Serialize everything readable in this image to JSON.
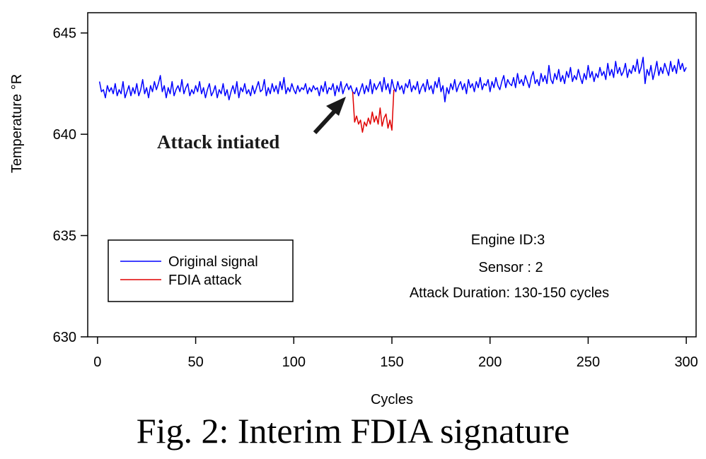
{
  "caption": "Fig. 2: Interim FDIA signature",
  "chart_data": {
    "type": "line",
    "xlabel": "Cycles",
    "ylabel": "Temperature °R",
    "xlim": [
      -5,
      305
    ],
    "ylim": [
      630,
      646
    ],
    "xticks": [
      0,
      50,
      100,
      150,
      200,
      250,
      300
    ],
    "yticks": [
      630,
      635,
      640,
      645
    ],
    "grid": false,
    "legend": {
      "placement": "bottom-left",
      "entries": [
        "Original signal",
        "FDIA attack"
      ]
    },
    "annotations": [
      {
        "text": "Attack intiated",
        "arrow_to": [
          129,
          642.0
        ]
      }
    ],
    "info_text": [
      "Engine ID:3",
      "Sensor : 2",
      "Attack Duration: 130-150 cycles"
    ],
    "colors": {
      "original": "#0000ff",
      "attack": "#e00000"
    },
    "series": [
      {
        "name": "Original signal",
        "x_start": 1,
        "values": [
          642.6,
          642.1,
          642.2,
          641.8,
          642.4,
          642.1,
          642.3,
          642.0,
          642.5,
          641.9,
          642.2,
          642.0,
          642.6,
          641.8,
          642.1,
          642.4,
          641.9,
          642.3,
          642.0,
          642.5,
          641.9,
          642.2,
          642.7,
          642.0,
          642.3,
          641.8,
          642.4,
          642.1,
          642.6,
          642.2,
          642.5,
          642.9,
          642.1,
          642.4,
          641.8,
          642.3,
          642.0,
          642.6,
          641.9,
          642.2,
          642.4,
          642.1,
          642.7,
          642.0,
          642.3,
          642.5,
          641.9,
          642.2,
          642.0,
          642.4,
          642.1,
          642.6,
          642.0,
          642.3,
          641.8,
          642.2,
          642.5,
          641.9,
          642.1,
          642.4,
          641.8,
          642.2,
          642.0,
          642.5,
          641.9,
          642.2,
          641.7,
          642.1,
          642.4,
          642.0,
          642.6,
          641.8,
          642.3,
          642.1,
          642.5,
          642.0,
          642.2,
          641.9,
          642.4,
          642.0,
          642.3,
          642.6,
          642.1,
          642.2,
          642.7,
          641.9,
          642.3,
          642.0,
          642.5,
          642.1,
          642.4,
          642.0,
          642.6,
          642.2,
          642.8,
          642.0,
          642.3,
          642.1,
          642.5,
          642.2,
          642.0,
          642.4,
          642.1,
          642.3,
          642.2,
          642.5,
          642.0,
          642.3,
          642.1,
          642.4,
          642.2,
          642.3,
          641.9,
          642.4,
          642.1,
          642.6,
          642.0,
          642.3,
          642.2,
          642.5,
          641.9,
          642.4,
          642.1,
          642.6,
          642.0,
          642.3,
          642.5,
          642.2,
          642.4,
          642.1,
          642.0,
          642.3,
          641.9,
          642.2,
          642.5,
          642.0,
          642.4,
          642.1,
          642.7,
          642.0,
          642.5,
          642.2,
          642.4,
          642.6,
          642.1,
          642.8,
          642.2,
          642.5,
          642.0,
          642.7,
          642.3,
          642.1,
          642.6,
          642.2,
          642.4,
          642.0,
          642.5,
          642.3,
          642.7,
          642.1,
          642.4,
          642.2,
          642.6,
          642.0,
          642.3,
          642.5,
          642.1,
          642.7,
          642.2,
          642.4,
          642.0,
          642.6,
          642.3,
          642.8,
          642.1,
          642.4,
          641.6,
          642.3,
          642.0,
          642.5,
          642.2,
          642.7,
          642.1,
          642.4,
          642.6,
          642.2,
          642.5,
          642.0,
          642.7,
          642.3,
          642.5,
          642.1,
          642.6,
          642.3,
          642.8,
          642.2,
          642.5,
          642.4,
          642.7,
          642.1,
          642.6,
          642.3,
          642.8,
          642.4,
          642.2,
          642.6,
          642.9,
          642.3,
          642.7,
          642.5,
          642.4,
          642.8,
          642.3,
          643.0,
          642.5,
          642.7,
          642.4,
          642.9,
          642.6,
          642.3,
          642.8,
          643.1,
          642.5,
          642.7,
          642.4,
          643.0,
          642.6,
          642.9,
          642.5,
          643.4,
          642.7,
          642.5,
          643.0,
          642.7,
          643.2,
          642.6,
          642.9,
          642.5,
          643.1,
          642.8,
          643.3,
          642.6,
          642.9,
          642.7,
          643.2,
          642.8,
          642.5,
          643.0,
          642.7,
          643.4,
          642.8,
          643.1,
          642.6,
          643.0,
          642.8,
          643.3,
          642.9,
          643.1,
          642.7,
          643.5,
          642.9,
          643.2,
          642.8,
          643.6,
          643.0,
          643.3,
          642.9,
          643.1,
          643.5,
          642.8,
          643.2,
          643.0,
          643.4,
          643.1,
          643.7,
          643.0,
          643.3,
          643.8,
          642.5,
          643.2,
          642.9,
          643.4,
          642.7,
          643.1,
          643.6,
          642.9,
          643.3,
          643.0,
          643.5,
          643.2,
          642.9,
          643.6,
          643.1,
          643.4,
          643.0,
          643.7,
          643.2,
          643.5,
          643.1,
          643.3
        ]
      },
      {
        "name": "FDIA attack",
        "x_start": 130,
        "values": [
          642.1,
          640.6,
          640.9,
          640.5,
          640.7,
          640.1,
          640.6,
          640.4,
          640.8,
          640.5,
          641.1,
          640.6,
          640.9,
          640.5,
          641.3,
          640.4,
          640.8,
          641.0,
          640.3,
          640.7,
          640.2,
          642.2
        ]
      }
    ]
  }
}
